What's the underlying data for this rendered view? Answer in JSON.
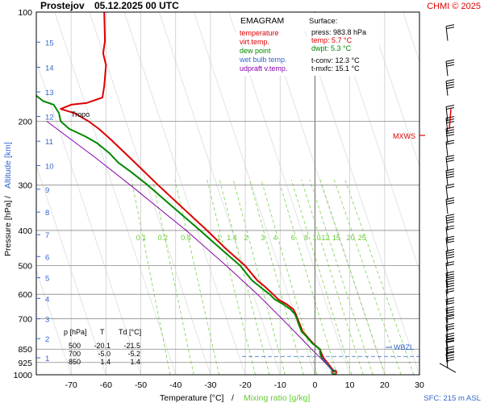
{
  "header": {
    "station": "Prostejov",
    "datetime": "05.12.2025 00 UTC",
    "copyright": "CHMI © 2025"
  },
  "colors": {
    "temperature": "#dd0000",
    "dewpoint": "#008800",
    "wetbulb": "#3366cc",
    "parcel": "#8800aa",
    "mixing_ratio": "#66cc33",
    "grid": "#999999",
    "axis_text": "#000000",
    "wbzl": "#3366cc"
  },
  "legend": {
    "title": "EMAGRAM",
    "items": [
      {
        "label": "temperature",
        "color": "#dd0000"
      },
      {
        "label": "virt.temp.",
        "color": "#dd0000"
      },
      {
        "label": "dew point",
        "color": "#008800"
      },
      {
        "label": "wet bulb temp.",
        "color": "#3366cc"
      },
      {
        "label": "udpraft v.temp.",
        "color": "#8800aa"
      }
    ]
  },
  "surface": {
    "title": "Surface:",
    "lines": [
      {
        "text": "press: 983.8 hPa",
        "color": "#000000"
      },
      {
        "text": "temp: 5.7 °C",
        "color": "#dd0000"
      },
      {
        "text": "dwpt: 5.3 °C",
        "color": "#008800"
      },
      {
        "text": "",
        "color": "#000000"
      },
      {
        "text": "t-conv: 12.3 °C",
        "color": "#000000"
      },
      {
        "text": "t-mxfc: 15.1 °C",
        "color": "#000000"
      }
    ]
  },
  "table": {
    "headers": [
      "p [hPa]",
      "T",
      "Td [°C]"
    ],
    "rows": [
      [
        "500",
        "-20.1",
        "-21.5"
      ],
      [
        "700",
        "-5.0",
        "-5.2"
      ],
      [
        "850",
        "1.4",
        "1.4"
      ]
    ]
  },
  "footer": {
    "xlabel": "Temperature [°C]",
    "separator": "/",
    "xlabel2": "Mixing ratio [g/kg]",
    "sfc": "SFC: 215 m ASL"
  },
  "ylabel": {
    "pressure": "Pressure [hPa]",
    "separator": "/",
    "altitude": "Altitude [km]"
  },
  "annotations": {
    "tropo": "Tropo",
    "mxws": "MXWS",
    "wbzl": "WBZL"
  },
  "chart_data": {
    "type": "line",
    "title": "Prostejov 05.12.2025 00 UTC",
    "xlabel": "Temperature [°C] / Mixing ratio [g/kg]",
    "ylabel": "Pressure [hPa] / Altitude [km]",
    "xlim": [
      -80,
      30
    ],
    "ylim_pressure": [
      1000,
      100
    ],
    "y_scale": "log",
    "x_ticks": [
      -70,
      -60,
      -50,
      -40,
      -30,
      -20,
      -10,
      0,
      10,
      20,
      30
    ],
    "pressure_ticks": [
      100,
      200,
      300,
      400,
      500,
      600,
      700,
      850,
      925,
      1000
    ],
    "altitude_ticks": [
      {
        "km": 1,
        "p": 898
      },
      {
        "km": 2,
        "p": 795
      },
      {
        "km": 3,
        "p": 701
      },
      {
        "km": 4,
        "p": 616
      },
      {
        "km": 5,
        "p": 540
      },
      {
        "km": 6,
        "p": 472
      },
      {
        "km": 7,
        "p": 411
      },
      {
        "km": 8,
        "p": 356
      },
      {
        "km": 9,
        "p": 308
      },
      {
        "km": 10,
        "p": 265
      },
      {
        "km": 11,
        "p": 227
      },
      {
        "km": 12,
        "p": 194
      },
      {
        "km": 13,
        "p": 166
      },
      {
        "km": 14,
        "p": 142
      },
      {
        "km": 15,
        "p": 121
      }
    ],
    "mixing_ratio_labels": [
      "0.1",
      "0.2",
      "0.4",
      "1",
      "1.4",
      "2",
      "3",
      "4",
      "6",
      "8",
      "10",
      "12",
      "15",
      "20",
      "25"
    ],
    "mixing_ratio_values": [
      0.1,
      0.2,
      0.4,
      1,
      1.4,
      2,
      3,
      4,
      6,
      8,
      10,
      12,
      15,
      20,
      25
    ],
    "grid": true,
    "series": [
      {
        "name": "temperature",
        "color": "#dd0000",
        "points": [
          [
            984,
            5.7
          ],
          [
            960,
            4.8
          ],
          [
            925,
            3.5
          ],
          [
            900,
            2.5
          ],
          [
            875,
            1.9
          ],
          [
            850,
            1.4
          ],
          [
            820,
            -0.5
          ],
          [
            800,
            -1.5
          ],
          [
            780,
            -2.5
          ],
          [
            760,
            -3.5
          ],
          [
            740,
            -4.0
          ],
          [
            720,
            -4.5
          ],
          [
            700,
            -5.0
          ],
          [
            680,
            -5.5
          ],
          [
            660,
            -6.2
          ],
          [
            640,
            -8.0
          ],
          [
            620,
            -10.5
          ],
          [
            600,
            -12.0
          ],
          [
            570,
            -14.5
          ],
          [
            550,
            -16.5
          ],
          [
            500,
            -20.1
          ],
          [
            450,
            -25.5
          ],
          [
            400,
            -31.0
          ],
          [
            350,
            -37.5
          ],
          [
            300,
            -45.0
          ],
          [
            250,
            -53.5
          ],
          [
            225,
            -58.5
          ],
          [
            210,
            -62.0
          ],
          [
            200,
            -65.0
          ],
          [
            190,
            -69.0
          ],
          [
            185,
            -73.0
          ],
          [
            180,
            -70.0
          ],
          [
            178,
            -65.5
          ],
          [
            172,
            -61.0
          ],
          [
            160,
            -60.5
          ],
          [
            140,
            -60.0
          ],
          [
            130,
            -60.8
          ],
          [
            120,
            -60.3
          ],
          [
            100,
            -60.5
          ]
        ]
      },
      {
        "name": "dew point",
        "color": "#008800",
        "points": [
          [
            984,
            5.3
          ],
          [
            960,
            4.5
          ],
          [
            925,
            3.0
          ],
          [
            900,
            2.0
          ],
          [
            875,
            1.5
          ],
          [
            850,
            1.4
          ],
          [
            820,
            -0.7
          ],
          [
            800,
            -1.7
          ],
          [
            780,
            -2.7
          ],
          [
            760,
            -3.8
          ],
          [
            740,
            -4.3
          ],
          [
            720,
            -4.8
          ],
          [
            700,
            -5.2
          ],
          [
            680,
            -5.8
          ],
          [
            660,
            -7.0
          ],
          [
            640,
            -9.0
          ],
          [
            620,
            -11.5
          ],
          [
            600,
            -13.0
          ],
          [
            570,
            -16.0
          ],
          [
            550,
            -18.0
          ],
          [
            500,
            -21.5
          ],
          [
            450,
            -27.0
          ],
          [
            400,
            -33.0
          ],
          [
            350,
            -40.0
          ],
          [
            300,
            -48.0
          ],
          [
            275,
            -53.0
          ],
          [
            260,
            -56.5
          ],
          [
            245,
            -59.0
          ],
          [
            230,
            -62.5
          ],
          [
            220,
            -66.0
          ],
          [
            210,
            -70.5
          ],
          [
            200,
            -73.0
          ],
          [
            190,
            -73.5
          ],
          [
            180,
            -75.0
          ],
          [
            176,
            -78.0
          ],
          [
            170,
            -80.0
          ],
          [
            160,
            -81.0
          ],
          [
            150,
            -81.5
          ],
          [
            140,
            -82.0
          ]
        ]
      },
      {
        "name": "udpraft v.temp.",
        "color": "#8800aa",
        "points": [
          [
            984,
            5.8
          ],
          [
            925,
            2.9
          ],
          [
            850,
            -1.0
          ],
          [
            800,
            -3.6
          ],
          [
            700,
            -9.5
          ],
          [
            600,
            -16.5
          ],
          [
            500,
            -25.5
          ],
          [
            400,
            -37.0
          ],
          [
            300,
            -53.0
          ],
          [
            250,
            -63.5
          ],
          [
            200,
            -77.0
          ]
        ]
      }
    ],
    "wind_barbs_pressures": [
      120,
      150,
      170,
      200,
      215,
      230,
      250,
      275,
      300,
      330,
      360,
      400,
      430,
      460,
      500,
      540,
      575,
      600,
      640,
      680,
      720,
      760,
      800,
      850,
      880,
      925,
      960
    ]
  }
}
